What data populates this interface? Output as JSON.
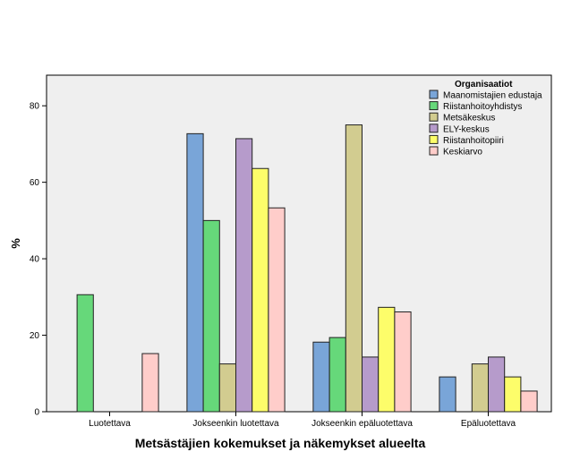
{
  "chart_data": {
    "type": "bar",
    "xlabel": "Metsästäjien kokemukset ja näkemykset alueelta",
    "ylabel": "%",
    "ylim": [
      0,
      88
    ],
    "yticks": [
      0,
      20,
      40,
      60,
      80
    ],
    "grid": false,
    "legend_position": "top-right",
    "legend_title": "Organisaatiot",
    "plot_background": "#efefef",
    "categories": [
      "Luotettava",
      "Jokseenkin luotettava",
      "Jokseenkin epäluotettava",
      "Epäluotettava"
    ],
    "series": [
      {
        "name": "Maanomistajien edustaja",
        "color": "#79a5d8",
        "values": [
          0,
          72.7,
          18.2,
          9.1
        ]
      },
      {
        "name": "Riistanhoitoyhdistys",
        "color": "#66d87a",
        "values": [
          30.6,
          50.0,
          19.4,
          0
        ]
      },
      {
        "name": "Metsäkeskus",
        "color": "#d2cc90",
        "values": [
          0,
          12.5,
          75.0,
          12.5
        ]
      },
      {
        "name": "ELY-keskus",
        "color": "#b69bcb",
        "values": [
          0,
          71.4,
          14.3,
          14.3
        ]
      },
      {
        "name": "Riistanhoitopiiri",
        "color": "#fdfd6a",
        "values": [
          0,
          63.6,
          27.3,
          9.1
        ]
      },
      {
        "name": "Keskiarvo",
        "color": "#ffcdca",
        "values": [
          15.2,
          53.3,
          26.1,
          5.4
        ]
      }
    ]
  }
}
